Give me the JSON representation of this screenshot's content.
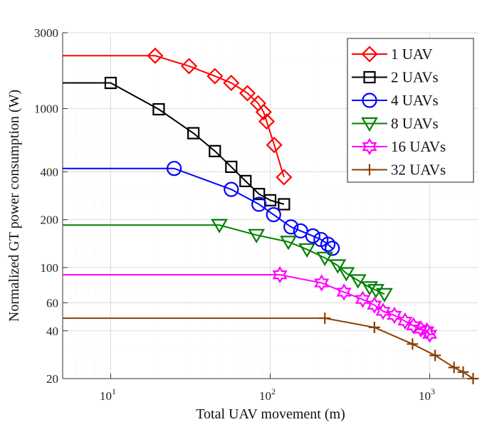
{
  "chart_data": {
    "type": "line",
    "title": "",
    "xlabel": "Total UAV movement (m)",
    "ylabel": "Normalized GT power consumption (W)",
    "xscale": "log",
    "yscale": "log",
    "xlim": [
      5,
      2000
    ],
    "ylim": [
      20,
      3000
    ],
    "x_ticks": [
      {
        "value": 10,
        "base": "10",
        "exp": "1"
      },
      {
        "value": 100,
        "base": "10",
        "exp": "2"
      },
      {
        "value": 1000,
        "base": "10",
        "exp": "3"
      }
    ],
    "y_ticks": [
      {
        "value": 20,
        "label": "20"
      },
      {
        "value": 40,
        "label": "40"
      },
      {
        "value": 60,
        "label": "60"
      },
      {
        "value": 100,
        "label": "100"
      },
      {
        "value": 200,
        "label": "200"
      },
      {
        "value": 400,
        "label": "400"
      },
      {
        "value": 1000,
        "label": "1000"
      },
      {
        "value": 3000,
        "label": "3000"
      }
    ],
    "grid": true,
    "legend_position": "top-right",
    "series": [
      {
        "name": "1 UAV",
        "color": "#ff0000",
        "marker": "diamond",
        "x": [
          5,
          19,
          31,
          45,
          57,
          72,
          84,
          91,
          95,
          106,
          122
        ],
        "y": [
          2150,
          2150,
          1850,
          1600,
          1450,
          1250,
          1080,
          950,
          830,
          590,
          370
        ]
      },
      {
        "name": "2 UAVs",
        "color": "#000000",
        "marker": "square",
        "x": [
          5,
          10,
          20,
          33,
          45,
          57,
          70,
          85,
          100,
          122
        ],
        "y": [
          1450,
          1450,
          990,
          700,
          540,
          430,
          350,
          290,
          265,
          250
        ]
      },
      {
        "name": "4 UAVs",
        "color": "#0000ff",
        "marker": "circle",
        "x": [
          5,
          25,
          57,
          85,
          105,
          135,
          155,
          185,
          208,
          230,
          245
        ],
        "y": [
          420,
          420,
          310,
          250,
          215,
          180,
          170,
          158,
          150,
          140,
          132
        ]
      },
      {
        "name": "8 UAVs",
        "color": "#008000",
        "marker": "triangle-down",
        "x": [
          5,
          48,
          82,
          130,
          170,
          220,
          265,
          300,
          355,
          420,
          460,
          520
        ],
        "y": [
          185,
          185,
          160,
          145,
          130,
          115,
          103,
          92,
          83,
          75,
          72,
          68
        ]
      },
      {
        "name": "16 UAVs",
        "color": "#ff00ff",
        "marker": "hexagram",
        "x": [
          5,
          115,
          210,
          290,
          380,
          450,
          510,
          600,
          700,
          790,
          880,
          960,
          1000
        ],
        "y": [
          90,
          90,
          80,
          70,
          63,
          58,
          53,
          50,
          46,
          43,
          41,
          40,
          38
        ]
      },
      {
        "name": "32 UAVs",
        "color": "#8b4000",
        "marker": "plus",
        "x": [
          5,
          220,
          450,
          780,
          1080,
          1420,
          1620,
          1870
        ],
        "y": [
          48,
          48,
          42,
          33,
          28,
          23.5,
          22,
          20
        ]
      }
    ]
  }
}
